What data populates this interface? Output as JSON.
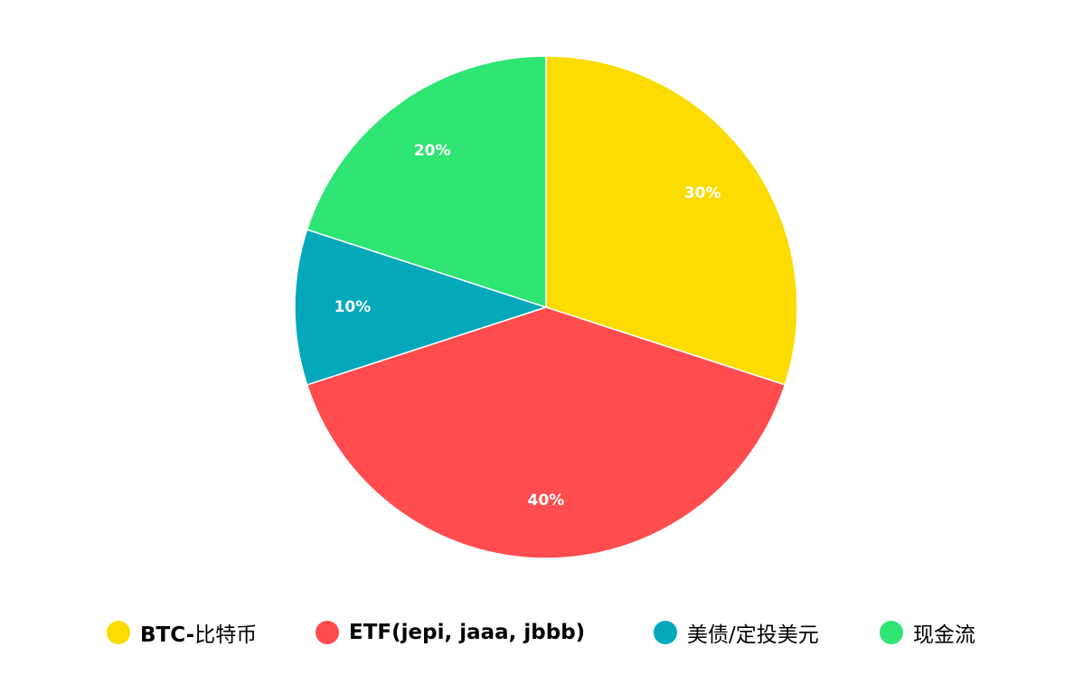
{
  "chart_data": {
    "type": "pie",
    "title": "",
    "slices": [
      {
        "name_bold": "BTC-",
        "name_rest": "比特币",
        "name": "BTC-比特币",
        "value": 30,
        "label": "30%",
        "color": "#FCDC00"
      },
      {
        "name_bold": "ETF(jepi, jaaa, jbbb)",
        "name_rest": "",
        "name": "ETF(jepi, jaaa, jbbb)",
        "value": 40,
        "label": "40%",
        "color": "#FF4D4F"
      },
      {
        "name_bold": "",
        "name_rest": "美债/定投美元",
        "name": "美债/定投美元",
        "value": 10,
        "label": "10%",
        "color": "#04A8BB"
      },
      {
        "name_bold": "",
        "name_rest": "现金流",
        "name": "现金流",
        "value": 20,
        "label": "20%",
        "color": "#2EE574"
      }
    ],
    "legend_position": "bottom",
    "start_angle": "12 o'clock, clockwise"
  }
}
